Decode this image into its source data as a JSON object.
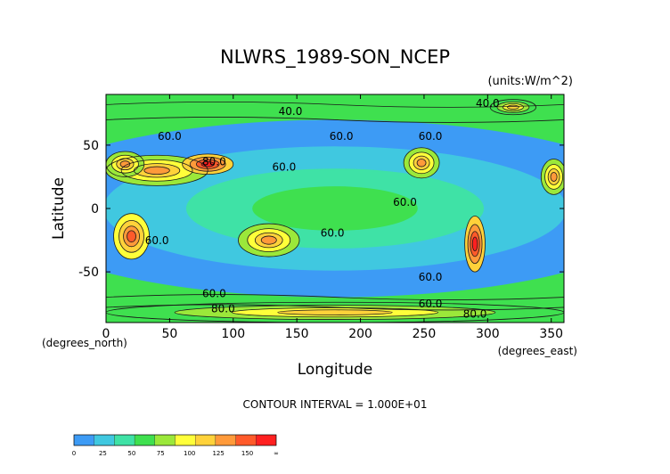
{
  "chart_data": {
    "type": "heatmap",
    "title": "NLWRS_1989-SON_NCEP",
    "units": "(units:W/m^2)",
    "xlabel": "Longitude",
    "ylabel": "Latitude",
    "x_unit_note": "(degrees_east)",
    "y_unit_note": "(degrees_north)",
    "xlim": [
      0,
      360
    ],
    "ylim": [
      -90,
      90
    ],
    "xticks": [
      0,
      50,
      100,
      150,
      200,
      250,
      300,
      350
    ],
    "yticks": [
      50,
      0,
      -50
    ],
    "contour_interval_text": "CONTOUR INTERVAL = 1.000E+01",
    "contour_labels": [
      {
        "text": "40.0",
        "lon": 145,
        "lat": 74
      },
      {
        "text": "60.0",
        "lon": 50,
        "lat": 54
      },
      {
        "text": "60.0",
        "lon": 185,
        "lat": 54
      },
      {
        "text": "60.0",
        "lon": 255,
        "lat": 54
      },
      {
        "text": "60.0",
        "lon": 140,
        "lat": 30
      },
      {
        "text": "60.0",
        "lon": 235,
        "lat": 2
      },
      {
        "text": "60.0",
        "lon": 40,
        "lat": -28
      },
      {
        "text": "60.0",
        "lon": 178,
        "lat": -22
      },
      {
        "text": "60.0",
        "lon": 255,
        "lat": -57
      },
      {
        "text": "60.0",
        "lon": 85,
        "lat": -70
      },
      {
        "text": "40.0",
        "lon": 300,
        "lat": 80
      },
      {
        "text": "60.0",
        "lon": 255,
        "lat": -78
      },
      {
        "text": "80.0",
        "lon": 290,
        "lat": -86
      },
      {
        "text": "80.0",
        "lon": 92,
        "lat": -82
      },
      {
        "text": "80.0",
        "lon": 85,
        "lat": 34
      }
    ],
    "colorbar": {
      "ticks": [
        "0",
        "25",
        "50",
        "75",
        "100",
        "125",
        "150",
        "∞"
      ],
      "colors": [
        "#3d9bf5",
        "#40c8e0",
        "#3fe2a6",
        "#3fe04f",
        "#9be83a",
        "#ffff3a",
        "#ffd23a",
        "#ff9a3a",
        "#ff5a2a",
        "#ff2020"
      ]
    },
    "regions": [
      {
        "lon": 180,
        "lat": 0,
        "rx": 260,
        "ry": 70,
        "value": 55
      },
      {
        "lon": 40,
        "lat": 30,
        "rx": 40,
        "ry": 12,
        "value": 115
      },
      {
        "lon": 80,
        "lat": 35,
        "rx": 20,
        "ry": 8,
        "value": 135
      },
      {
        "lon": 15,
        "lat": 35,
        "rx": 15,
        "ry": 10,
        "value": 110
      },
      {
        "lon": 248,
        "lat": 36,
        "rx": 14,
        "ry": 12,
        "value": 115
      },
      {
        "lon": 352,
        "lat": 25,
        "rx": 10,
        "ry": 14,
        "value": 115
      },
      {
        "lon": 20,
        "lat": -22,
        "rx": 14,
        "ry": 18,
        "value": 120
      },
      {
        "lon": 128,
        "lat": -25,
        "rx": 24,
        "ry": 13,
        "value": 115
      },
      {
        "lon": 290,
        "lat": -28,
        "rx": 8,
        "ry": 22,
        "value": 135
      },
      {
        "lon": 180,
        "lat": -82,
        "rx": 180,
        "ry": 8,
        "value": 95
      },
      {
        "lon": 320,
        "lat": 80,
        "rx": 18,
        "ry": 6,
        "value": 95
      }
    ]
  }
}
